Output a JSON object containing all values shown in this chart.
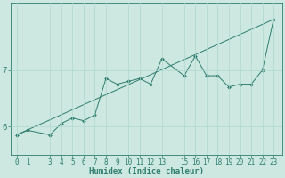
{
  "xlabel": "Humidex (Indice chaleur)",
  "background_color": "#cce8e0",
  "line_color": "#2e7d6e",
  "marker_color": "#2e7d6e",
  "grid_color": "#b0d8cf",
  "x_data": [
    0,
    1,
    3,
    4,
    5,
    6,
    7,
    8,
    9,
    10,
    11,
    12,
    13,
    15,
    16,
    17,
    18,
    19,
    20,
    21,
    22,
    23
  ],
  "y_data": [
    5.85,
    5.93,
    5.85,
    6.05,
    6.15,
    6.1,
    6.2,
    6.85,
    6.75,
    6.8,
    6.85,
    6.75,
    7.2,
    6.9,
    7.25,
    6.9,
    6.9,
    6.7,
    6.75,
    6.75,
    7.0,
    7.9
  ],
  "trend_x": [
    0,
    23
  ],
  "trend_y": [
    5.85,
    7.9
  ],
  "yticks": [
    6,
    7
  ],
  "xticks": [
    0,
    1,
    3,
    4,
    5,
    6,
    7,
    8,
    9,
    10,
    11,
    12,
    13,
    15,
    16,
    17,
    18,
    19,
    20,
    21,
    22,
    23
  ],
  "ylim": [
    5.5,
    8.2
  ],
  "xlim": [
    -0.5,
    23.8
  ],
  "tick_fontsize": 5.5,
  "label_fontsize": 6.5
}
